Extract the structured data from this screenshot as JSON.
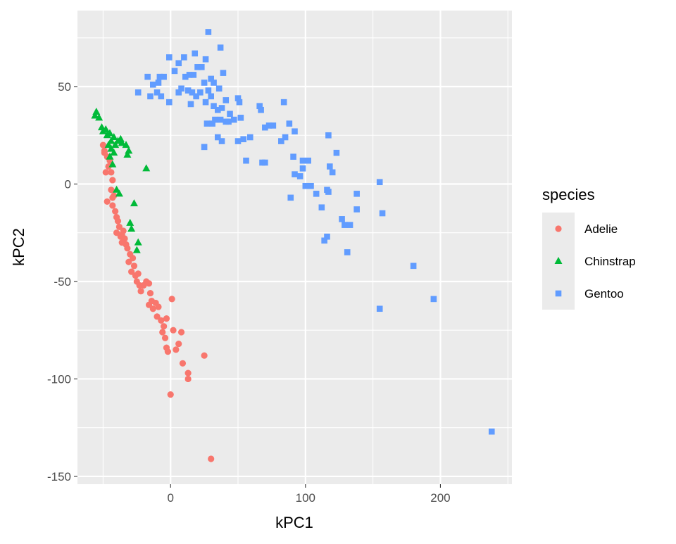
{
  "chart_data": {
    "type": "scatter",
    "title": "",
    "xlabel": "kPC1",
    "ylabel": "kPC2",
    "xlim": [
      -69,
      253
    ],
    "ylim": [
      -154,
      89
    ],
    "x_ticks": [
      0,
      100,
      200
    ],
    "y_ticks": [
      50,
      0,
      -50,
      -100,
      -150
    ],
    "x_tick_labels": [
      "0",
      "100",
      "200"
    ],
    "y_tick_labels": [
      "50",
      "0",
      "-50",
      "-100",
      "-150"
    ],
    "grid": true,
    "legend": {
      "title": "species",
      "placement": "right"
    },
    "series": [
      {
        "name": "Adelie",
        "color": "#F8766D",
        "shape": "circle",
        "points": [
          [
            -50,
            20
          ],
          [
            -49,
            17
          ],
          [
            -47,
            14
          ],
          [
            -45,
            12
          ],
          [
            -46,
            9
          ],
          [
            -44,
            6
          ],
          [
            -43,
            2
          ],
          [
            -44,
            -3
          ],
          [
            -42,
            -6
          ],
          [
            -43,
            -11
          ],
          [
            -41,
            -14
          ],
          [
            -40,
            -17
          ],
          [
            -39,
            -19
          ],
          [
            -38,
            -22
          ],
          [
            -40,
            -25
          ],
          [
            -37,
            -27
          ],
          [
            -36,
            -26
          ],
          [
            -35,
            -24
          ],
          [
            -34,
            -28
          ],
          [
            -33,
            -31
          ],
          [
            -36,
            -30
          ],
          [
            -32,
            -33
          ],
          [
            -30,
            -36
          ],
          [
            -31,
            -40
          ],
          [
            -28,
            -38
          ],
          [
            -27,
            -42
          ],
          [
            -29,
            -45
          ],
          [
            -26,
            -47
          ],
          [
            -24,
            -46
          ],
          [
            -25,
            -50
          ],
          [
            -23,
            -52
          ],
          [
            -22,
            -55
          ],
          [
            -20,
            -52
          ],
          [
            -18,
            -50
          ],
          [
            -16,
            -51
          ],
          [
            -15,
            -56
          ],
          [
            -14,
            -60
          ],
          [
            -16,
            -62
          ],
          [
            -13,
            -64
          ],
          [
            -11,
            -61
          ],
          [
            -9,
            -63
          ],
          [
            -10,
            -68
          ],
          [
            -7,
            -70
          ],
          [
            -5,
            -73
          ],
          [
            -3,
            -69
          ],
          [
            -6,
            -76
          ],
          [
            -4,
            -79
          ],
          [
            1,
            -59
          ],
          [
            2,
            -75
          ],
          [
            8,
            -76
          ],
          [
            6,
            -82
          ],
          [
            4,
            -85
          ],
          [
            -3,
            -84
          ],
          [
            -2,
            -86
          ],
          [
            9,
            -92
          ],
          [
            13,
            -97
          ],
          [
            13,
            -100
          ],
          [
            25,
            -88
          ],
          [
            0,
            -108
          ],
          [
            30,
            -141
          ],
          [
            -47,
            -9
          ],
          [
            -49,
            16
          ],
          [
            -48,
            6
          ],
          [
            -43,
            -7
          ]
        ]
      },
      {
        "name": "Chinstrap",
        "color": "#00BA38",
        "shape": "triangle",
        "points": [
          [
            -55,
            37
          ],
          [
            -56,
            35
          ],
          [
            -53,
            34
          ],
          [
            -51,
            29
          ],
          [
            -50,
            27
          ],
          [
            -48,
            28
          ],
          [
            -47,
            25
          ],
          [
            -45,
            26
          ],
          [
            -44,
            22
          ],
          [
            -42,
            24
          ],
          [
            -41,
            20
          ],
          [
            -39,
            22
          ],
          [
            -37,
            23
          ],
          [
            -36,
            21
          ],
          [
            -33,
            20
          ],
          [
            -31,
            17
          ],
          [
            -32,
            15
          ],
          [
            -18,
            8
          ],
          [
            -44,
            18
          ],
          [
            -45,
            14
          ],
          [
            -43,
            10
          ],
          [
            -40,
            -3
          ],
          [
            -38,
            -5
          ],
          [
            -27,
            -10
          ],
          [
            -30,
            -20
          ],
          [
            -29,
            -23
          ],
          [
            -24,
            -30
          ],
          [
            -25,
            -34
          ],
          [
            -46,
            20
          ],
          [
            -42,
            16
          ]
        ]
      },
      {
        "name": "Gentoo",
        "color": "#619CFF",
        "shape": "square",
        "points": [
          [
            28,
            78
          ],
          [
            37,
            70
          ],
          [
            -8,
            55
          ],
          [
            -1,
            65
          ],
          [
            10,
            65
          ],
          [
            18,
            67
          ],
          [
            26,
            64
          ],
          [
            39,
            57
          ],
          [
            -17,
            55
          ],
          [
            -5,
            55
          ],
          [
            -9,
            52
          ],
          [
            -13,
            51
          ],
          [
            -10,
            47
          ],
          [
            -24,
            47
          ],
          [
            -15,
            45
          ],
          [
            -7,
            45
          ],
          [
            -1,
            42
          ],
          [
            6,
            47
          ],
          [
            8,
            49
          ],
          [
            11,
            55
          ],
          [
            14,
            56
          ],
          [
            17,
            56
          ],
          [
            20,
            60
          ],
          [
            23,
            60
          ],
          [
            13,
            48
          ],
          [
            16,
            47
          ],
          [
            19,
            45
          ],
          [
            22,
            47
          ],
          [
            26,
            42
          ],
          [
            30,
            45
          ],
          [
            32,
            40
          ],
          [
            35,
            38
          ],
          [
            38,
            39
          ],
          [
            41,
            43
          ],
          [
            44,
            36
          ],
          [
            36,
            49
          ],
          [
            30,
            54
          ],
          [
            28,
            48
          ],
          [
            33,
            33
          ],
          [
            37,
            33
          ],
          [
            41,
            32
          ],
          [
            47,
            33
          ],
          [
            52,
            34
          ],
          [
            50,
            44
          ],
          [
            51,
            42
          ],
          [
            27,
            31
          ],
          [
            31,
            31
          ],
          [
            35,
            24
          ],
          [
            38,
            22
          ],
          [
            25,
            19
          ],
          [
            43,
            32
          ],
          [
            50,
            22
          ],
          [
            54,
            23
          ],
          [
            59,
            24
          ],
          [
            56,
            12
          ],
          [
            66,
            40
          ],
          [
            67,
            38
          ],
          [
            68,
            11
          ],
          [
            70,
            11
          ],
          [
            70,
            29
          ],
          [
            73,
            30
          ],
          [
            76,
            30
          ],
          [
            82,
            22
          ],
          [
            85,
            24
          ],
          [
            88,
            31
          ],
          [
            92,
            27
          ],
          [
            84,
            42
          ],
          [
            91,
            14
          ],
          [
            92,
            5
          ],
          [
            96,
            4
          ],
          [
            98,
            12
          ],
          [
            102,
            12
          ],
          [
            98,
            8
          ],
          [
            100,
            -1
          ],
          [
            104,
            -1
          ],
          [
            108,
            -5
          ],
          [
            89,
            -7
          ],
          [
            112,
            -12
          ],
          [
            116,
            -3
          ],
          [
            117,
            -4
          ],
          [
            118,
            9
          ],
          [
            120,
            6
          ],
          [
            123,
            16
          ],
          [
            117,
            25
          ],
          [
            127,
            -18
          ],
          [
            129,
            -21
          ],
          [
            133,
            -21
          ],
          [
            131,
            -35
          ],
          [
            138,
            -13
          ],
          [
            138,
            -5
          ],
          [
            114,
            -29
          ],
          [
            116,
            -27
          ],
          [
            155,
            1
          ],
          [
            157,
            -15
          ],
          [
            155,
            -64
          ],
          [
            180,
            -42
          ],
          [
            195,
            -59
          ],
          [
            238,
            -127
          ],
          [
            15,
            41
          ],
          [
            25,
            52
          ],
          [
            32,
            52
          ],
          [
            3,
            58
          ],
          [
            6,
            62
          ]
        ]
      }
    ]
  }
}
